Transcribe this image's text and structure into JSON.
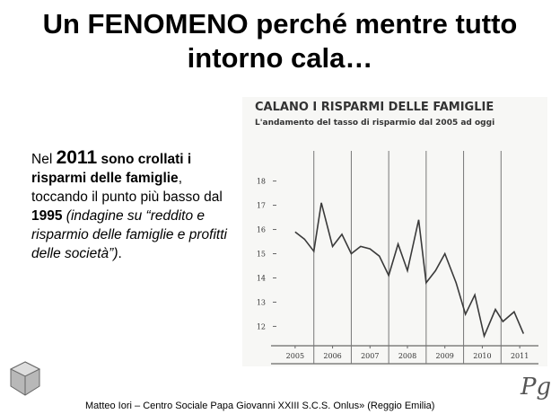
{
  "slide": {
    "title": [
      "Un FENOMENO perché mentre tutto",
      "intorno cala…"
    ],
    "body": [
      "Nel ",
      "2011",
      " sono crollati i risparmi delle famiglie",
      ", toccando il punto più basso dal ",
      "1995",
      " (indagine su “reddito e risparmio delle famiglie e profitti delle società”)",
      "."
    ],
    "footer": "Matteo Iori – Centro Sociale Papa Giovanni XXIII S.C.S. Onlus» (Reggio Emilia)",
    "signature": "Pg"
  },
  "chart_data": {
    "type": "line",
    "title": "CALANO I RISPARMI DELLE FAMIGLIE",
    "subtitle": "L'andamento del tasso di risparmio dal 2005 ad oggi",
    "x": [
      2005.5,
      2005.75,
      2006.0,
      2006.2,
      2006.5,
      2006.75,
      2007.0,
      2007.25,
      2007.5,
      2007.75,
      2008.0,
      2008.25,
      2008.5,
      2008.8,
      2009.0,
      2009.25,
      2009.5,
      2009.8,
      2010.05,
      2010.3,
      2010.55,
      2010.85,
      2011.05,
      2011.35,
      2011.6
    ],
    "series": [
      {
        "color": "#3a3a3a",
        "values": [
          15.9,
          15.6,
          15.1,
          17.1,
          15.3,
          15.8,
          15.0,
          15.3,
          15.2,
          14.9,
          14.1,
          15.4,
          14.3,
          16.4,
          13.8,
          14.3,
          15.0,
          13.8,
          12.5,
          13.3,
          11.6,
          12.7,
          12.2,
          12.6,
          11.7
        ]
      }
    ],
    "xlim": [
      2005,
      2012
    ],
    "xticks": [
      {
        "value": 2005.5,
        "label": "2005"
      },
      {
        "value": 2006.5,
        "label": "2006"
      },
      {
        "value": 2007.5,
        "label": "2007"
      },
      {
        "value": 2008.5,
        "label": "2008"
      },
      {
        "value": 2009.5,
        "label": "2009"
      },
      {
        "value": 2010.5,
        "label": "2010"
      },
      {
        "value": 2011.5,
        "label": "2011"
      }
    ],
    "ylim": [
      11.2,
      18.8
    ],
    "yticks": [
      12,
      13,
      14,
      15,
      16,
      17,
      18
    ]
  }
}
